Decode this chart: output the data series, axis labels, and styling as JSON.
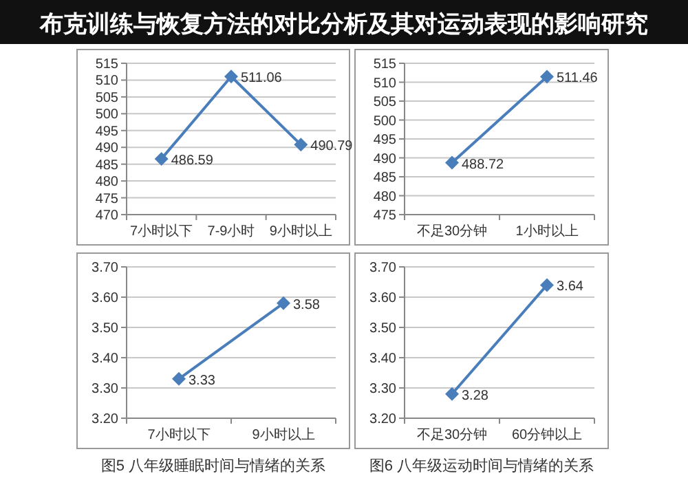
{
  "chart_data": [
    {
      "type": "line",
      "categories": [
        "7小时以下",
        "7-9小时",
        "9小时以上"
      ],
      "series": [
        {
          "color": "#4a7ebb",
          "values": [
            486.59,
            511.06,
            490.79
          ]
        }
      ],
      "ylim": [
        470,
        515
      ],
      "yticks": [
        470,
        475,
        480,
        485,
        490,
        495,
        500,
        505,
        510,
        515
      ],
      "grid": "y",
      "marker": "diamond",
      "data_labels": true,
      "annotations": [
        "布克训练与恢复方法的对比分析及其对运动表现的影响研究"
      ]
    },
    {
      "type": "line",
      "categories": [
        "不足30分钟",
        "1小时以上"
      ],
      "series": [
        {
          "color": "#4a7ebb",
          "values": [
            488.72,
            511.46
          ]
        }
      ],
      "ylim": [
        475,
        515
      ],
      "yticks": [
        475,
        480,
        485,
        490,
        495,
        500,
        505,
        510,
        515
      ],
      "grid": "y",
      "marker": "diamond",
      "data_labels": true
    },
    {
      "type": "line",
      "categories": [
        "7小时以下",
        "9小时以上"
      ],
      "series": [
        {
          "color": "#4a7ebb",
          "values": [
            3.33,
            3.58
          ]
        }
      ],
      "ylim": [
        3.2,
        3.7
      ],
      "yticks": [
        {
          "value": 3.2,
          "label": "3.20"
        },
        {
          "value": 3.3,
          "label": "3.30"
        },
        {
          "value": 3.4,
          "label": "3.40"
        },
        {
          "value": 3.5,
          "label": "3.50"
        },
        {
          "value": 3.6,
          "label": "3.60"
        },
        {
          "value": 3.7,
          "label": "3.70"
        }
      ],
      "grid": "y",
      "marker": "diamond",
      "data_labels": true,
      "annotations": [
        "图5  八年级睡眠时间与情绪的关系"
      ]
    },
    {
      "type": "line",
      "categories": [
        "不足30分钟",
        "60分钟以上"
      ],
      "series": [
        {
          "color": "#4a7ebb",
          "values": [
            3.28,
            3.64
          ]
        }
      ],
      "ylim": [
        3.2,
        3.7
      ],
      "yticks": [
        {
          "value": 3.2,
          "label": "3.20"
        },
        {
          "value": 3.3,
          "label": "3.30"
        },
        {
          "value": 3.4,
          "label": "3.40"
        },
        {
          "value": 3.5,
          "label": "3.50"
        },
        {
          "value": 3.6,
          "label": "3.60"
        },
        {
          "value": 3.7,
          "label": "3.70"
        }
      ],
      "grid": "y",
      "marker": "diamond",
      "data_labels": true,
      "annotations": [
        "图6  八年级运动时间与情绪的关系"
      ]
    }
  ]
}
